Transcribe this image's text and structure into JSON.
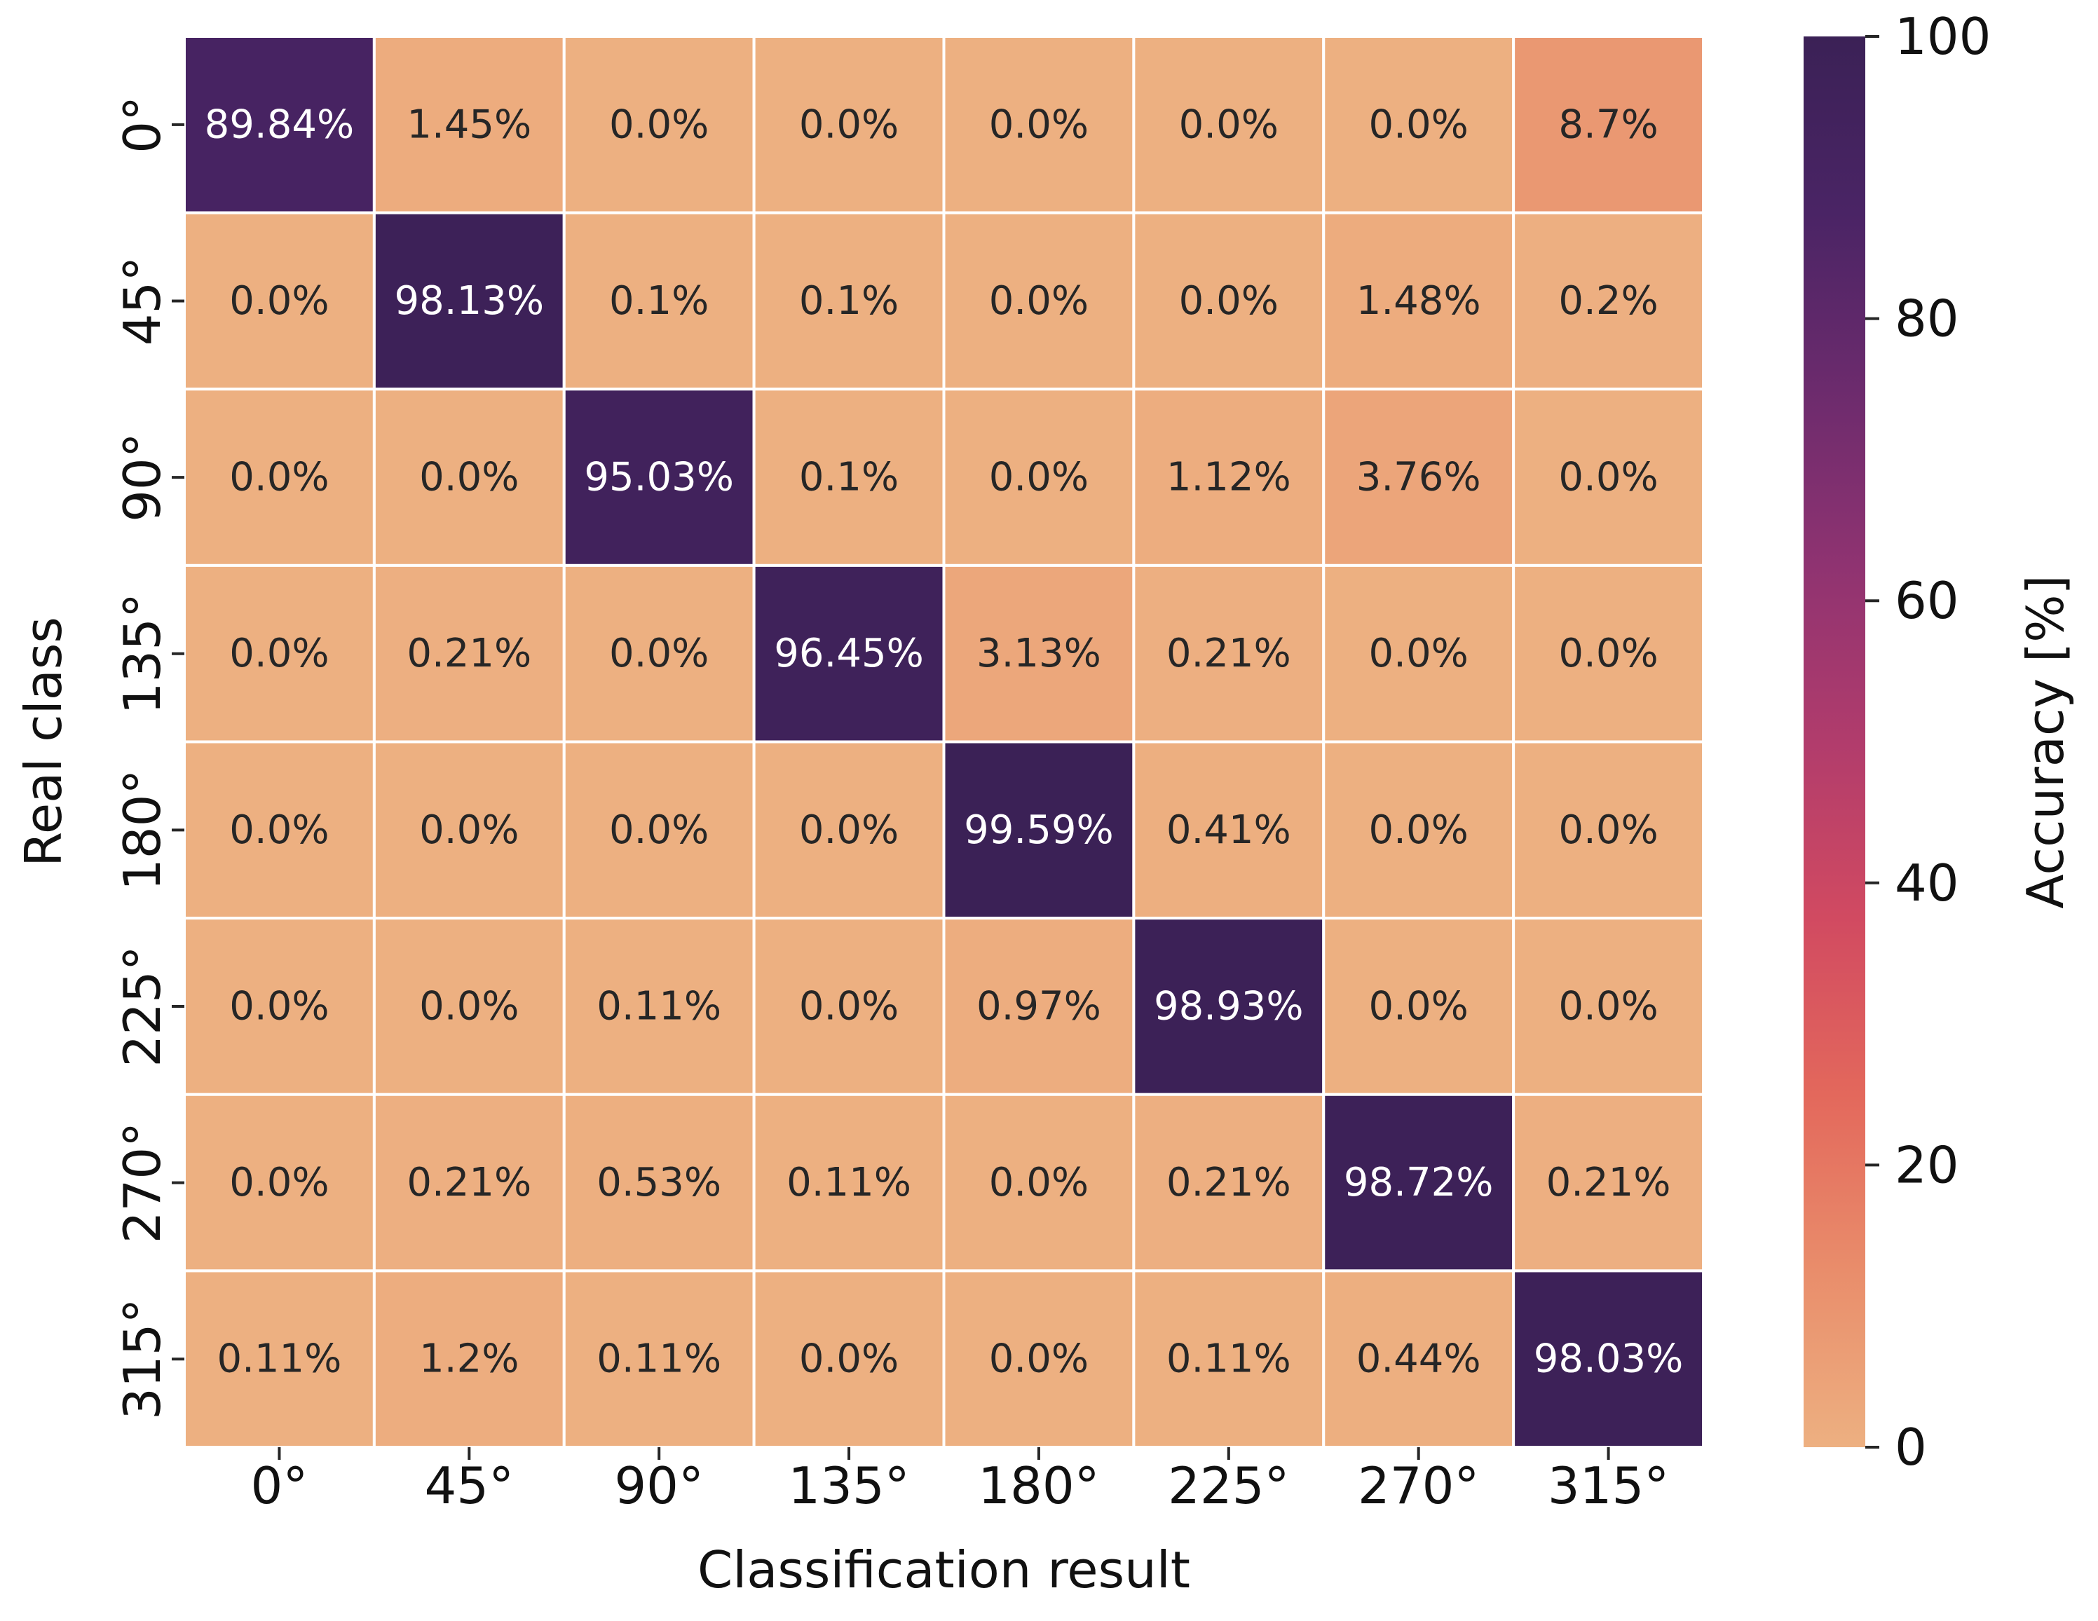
{
  "chart_data": {
    "type": "heatmap",
    "xlabel": "Classification result",
    "ylabel": "Real class",
    "x_categories": [
      "0°",
      "45°",
      "90°",
      "135°",
      "180°",
      "225°",
      "270°",
      "315°"
    ],
    "y_categories": [
      "0°",
      "45°",
      "90°",
      "135°",
      "180°",
      "225°",
      "270°",
      "315°"
    ],
    "values": [
      [
        89.84,
        1.45,
        0.0,
        0.0,
        0.0,
        0.0,
        0.0,
        8.7
      ],
      [
        0.0,
        98.13,
        0.1,
        0.1,
        0.0,
        0.0,
        1.48,
        0.2
      ],
      [
        0.0,
        0.0,
        95.03,
        0.1,
        0.0,
        1.12,
        3.76,
        0.0
      ],
      [
        0.0,
        0.21,
        0.0,
        96.45,
        3.13,
        0.21,
        0.0,
        0.0
      ],
      [
        0.0,
        0.0,
        0.0,
        0.0,
        99.59,
        0.41,
        0.0,
        0.0
      ],
      [
        0.0,
        0.0,
        0.11,
        0.0,
        0.97,
        98.93,
        0.0,
        0.0
      ],
      [
        0.0,
        0.21,
        0.53,
        0.11,
        0.0,
        0.21,
        98.72,
        0.21
      ],
      [
        0.11,
        1.2,
        0.11,
        0.0,
        0.0,
        0.11,
        0.44,
        98.03
      ]
    ],
    "cell_labels": [
      [
        "89.84%",
        "1.45%",
        "0.0%",
        "0.0%",
        "0.0%",
        "0.0%",
        "0.0%",
        "8.7%"
      ],
      [
        "0.0%",
        "98.13%",
        "0.1%",
        "0.1%",
        "0.0%",
        "0.0%",
        "1.48%",
        "0.2%"
      ],
      [
        "0.0%",
        "0.0%",
        "95.03%",
        "0.1%",
        "0.0%",
        "1.12%",
        "3.76%",
        "0.0%"
      ],
      [
        "0.0%",
        "0.21%",
        "0.0%",
        "96.45%",
        "3.13%",
        "0.21%",
        "0.0%",
        "0.0%"
      ],
      [
        "0.0%",
        "0.0%",
        "0.0%",
        "0.0%",
        "99.59%",
        "0.41%",
        "0.0%",
        "0.0%"
      ],
      [
        "0.0%",
        "0.0%",
        "0.11%",
        "0.0%",
        "0.97%",
        "98.93%",
        "0.0%",
        "0.0%"
      ],
      [
        "0.0%",
        "0.21%",
        "0.53%",
        "0.11%",
        "0.0%",
        "0.21%",
        "98.72%",
        "0.21%"
      ],
      [
        "0.11%",
        "1.2%",
        "0.11%",
        "0.0%",
        "0.0%",
        "0.11%",
        "0.44%",
        "98.03%"
      ]
    ],
    "colorbar": {
      "label": "Accuracy [%]",
      "range": [
        0,
        100
      ],
      "ticks": [
        0,
        20,
        40,
        60,
        80,
        100
      ],
      "tick_labels": [
        "0",
        "20",
        "40",
        "60",
        "80",
        "100"
      ],
      "colormap": "flare",
      "color_stops": [
        "#edb081",
        "#e98d6b",
        "#e3685c",
        "#d14a61",
        "#b13c6c",
        "#8f3371",
        "#6c2b6d",
        "#4a2465",
        "#3b2156"
      ]
    },
    "text_colors": {
      "dark": "#262626",
      "light": "#ffffff"
    },
    "grid": true
  }
}
